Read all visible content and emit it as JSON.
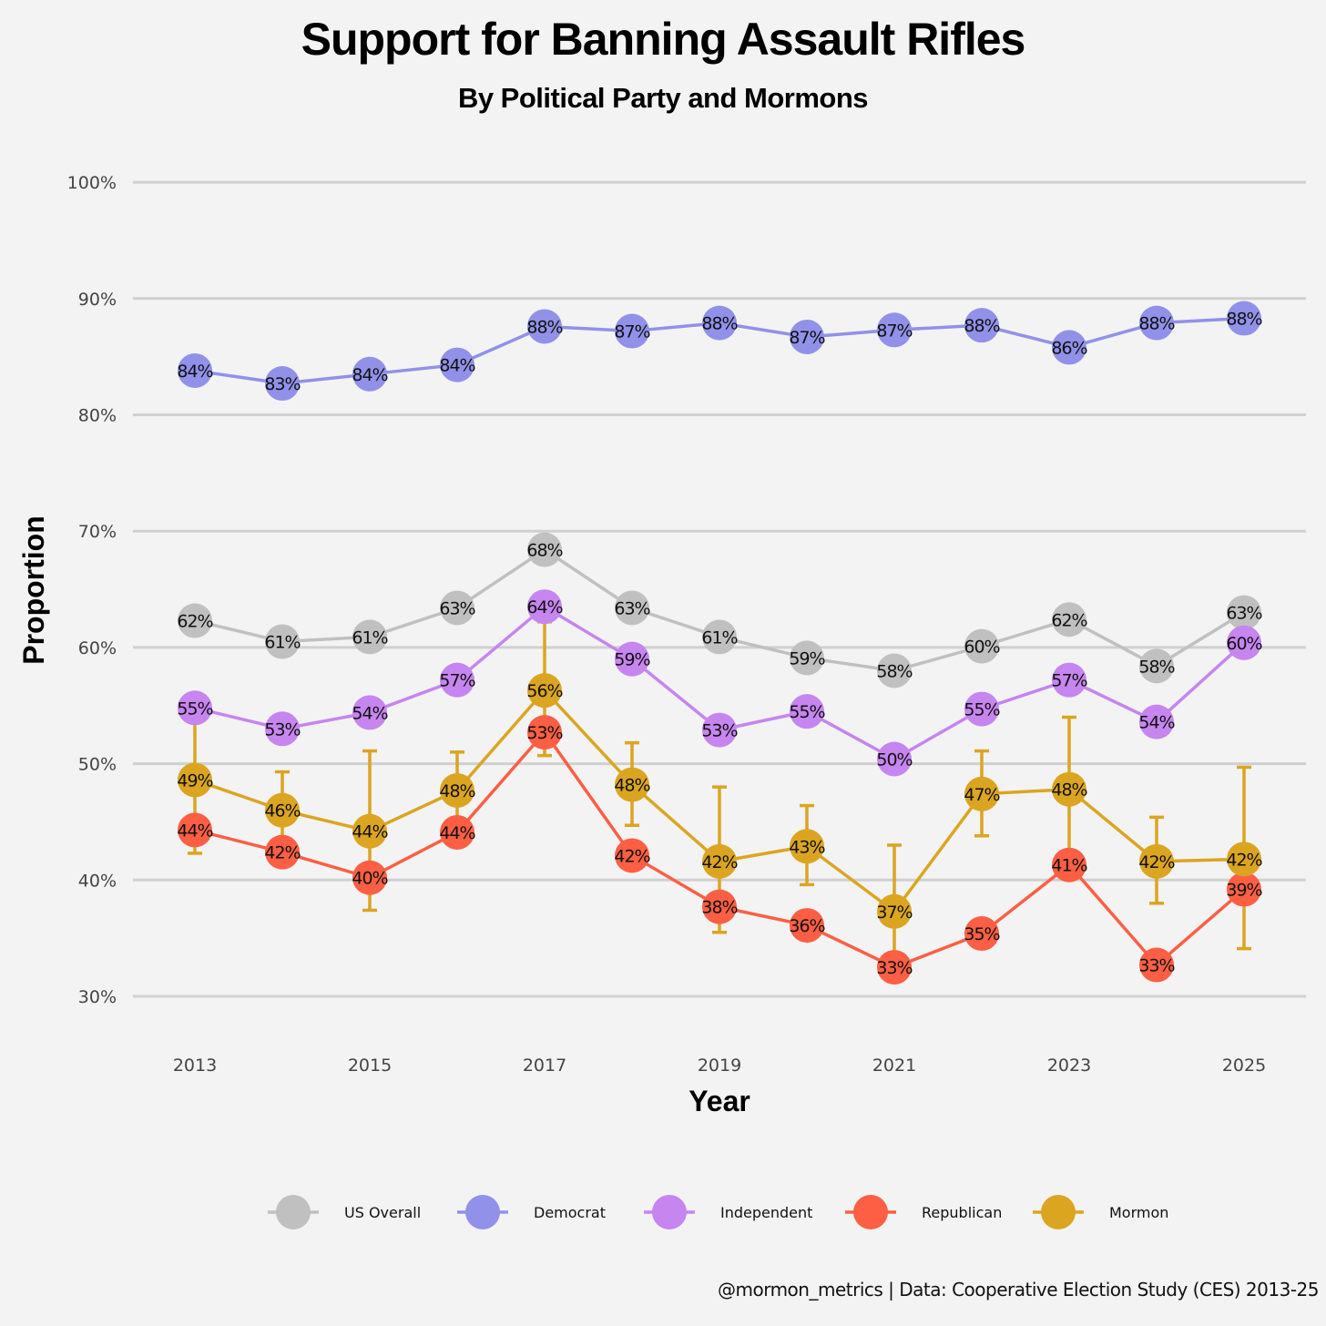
{
  "chart_data": {
    "type": "line",
    "title": "Support for Banning Assault Rifles",
    "subtitle": "By Political Party and Mormons",
    "xlabel": "Year",
    "ylabel": "Proportion",
    "caption": "@mormon_metrics | Data: Cooperative Election Study (CES) 2013-25",
    "x": [
      2013,
      2014,
      2015,
      2016,
      2017,
      2018,
      2019,
      2020,
      2021,
      2022,
      2023,
      2024,
      2025
    ],
    "x_ticks": [
      "2013",
      "2015",
      "2017",
      "2019",
      "2021",
      "2023",
      "2025"
    ],
    "x_tick_values": [
      2013,
      2015,
      2017,
      2019,
      2021,
      2023,
      2025
    ],
    "y_ticks": [
      "30%",
      "40%",
      "50%",
      "60%",
      "70%",
      "80%",
      "90%",
      "100%"
    ],
    "y_tick_values": [
      30,
      40,
      50,
      60,
      70,
      80,
      90,
      100
    ],
    "xlim": [
      2012.5,
      2025.6
    ],
    "ylim": [
      26,
      105
    ],
    "grid": "horizontal",
    "legend_position": "bottom",
    "series": [
      {
        "name": "US Overall",
        "color": "#c0c0c0",
        "values": [
          62.3,
          60.5,
          60.9,
          63.4,
          68.4,
          63.4,
          60.9,
          59.1,
          58.0,
          60.1,
          62.4,
          58.4,
          63.0
        ]
      },
      {
        "name": "Democrat",
        "color": "#9191ea",
        "values": [
          83.8,
          82.7,
          83.5,
          84.3,
          87.6,
          87.2,
          87.9,
          86.7,
          87.3,
          87.7,
          85.8,
          87.9,
          88.3
        ]
      },
      {
        "name": "Independent",
        "color": "#c685ef",
        "values": [
          54.8,
          53.0,
          54.4,
          57.2,
          63.5,
          59.0,
          52.9,
          54.5,
          50.4,
          54.7,
          57.2,
          53.6,
          60.4
        ]
      },
      {
        "name": "Republican",
        "color": "#fc5f44",
        "values": [
          44.3,
          42.4,
          40.2,
          44.1,
          52.7,
          42.1,
          37.7,
          36.1,
          32.5,
          35.4,
          41.3,
          32.7,
          39.2
        ]
      },
      {
        "name": "Mormon",
        "color": "#dba521",
        "values": [
          48.6,
          46.0,
          44.2,
          47.7,
          56.3,
          48.2,
          41.6,
          42.9,
          37.3,
          47.4,
          47.8,
          41.6,
          41.8
        ],
        "error_low": [
          42.3,
          42.8,
          37.4,
          44.6,
          50.7,
          44.7,
          35.5,
          39.6,
          31.6,
          43.8,
          41.5,
          38.0,
          34.1
        ],
        "error_high": [
          55.1,
          49.3,
          51.1,
          51.0,
          62.2,
          51.8,
          48.0,
          46.4,
          43.0,
          51.1,
          54.0,
          45.4,
          49.7
        ]
      }
    ]
  }
}
